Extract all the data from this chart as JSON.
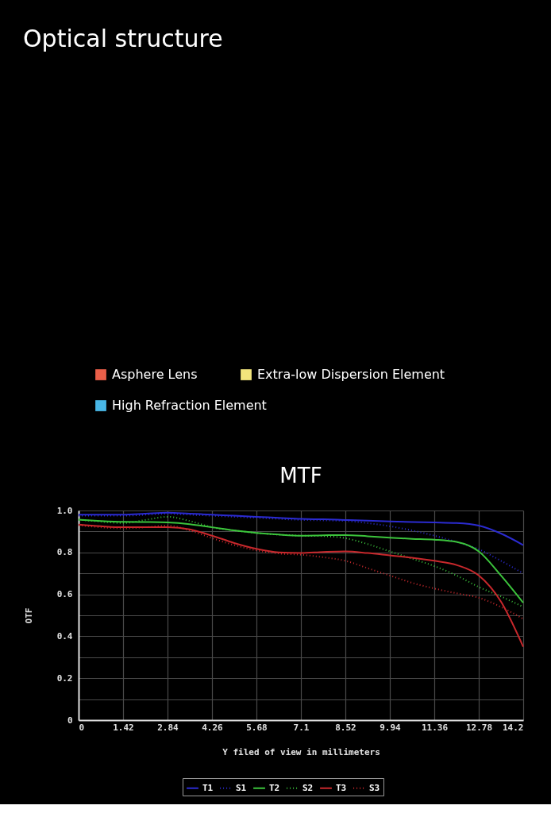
{
  "chart_data": [
    {
      "type": "other",
      "title": "Optical structure",
      "categories": [
        "Asphere Lens",
        "Extra-low Dispersion Element",
        "High Refraction Element"
      ],
      "colors": [
        "#ea5f49",
        "#f2e47c",
        "#48b6e6"
      ]
    },
    {
      "type": "line",
      "title": "MTF",
      "xlabel": "Y filed of view in millimeters",
      "ylabel": "OTF",
      "x": [
        0,
        0.71,
        1.42,
        2.13,
        2.84,
        3.55,
        4.26,
        4.97,
        5.68,
        6.39,
        7.1,
        7.81,
        8.52,
        9.23,
        9.94,
        10.65,
        11.36,
        12.07,
        12.78,
        13.49,
        14.2
      ],
      "series": [
        {
          "name": "T1",
          "color": "#2b2bd0",
          "line_style": "solid",
          "values": [
            0.98,
            0.98,
            0.98,
            0.985,
            0.99,
            0.985,
            0.98,
            0.975,
            0.97,
            0.965,
            0.96,
            0.958,
            0.955,
            0.952,
            0.948,
            0.945,
            0.943,
            0.94,
            0.928,
            0.89,
            0.835
          ]
        },
        {
          "name": "S1",
          "color": "#2b2bd0",
          "line_style": "dotted",
          "values": [
            0.975,
            0.975,
            0.975,
            0.98,
            0.985,
            0.98,
            0.975,
            0.97,
            0.965,
            0.96,
            0.955,
            0.953,
            0.95,
            0.94,
            0.925,
            0.905,
            0.88,
            0.85,
            0.815,
            0.76,
            0.7
          ]
        },
        {
          "name": "T2",
          "color": "#3cc43c",
          "line_style": "solid",
          "values": [
            0.956,
            0.95,
            0.946,
            0.945,
            0.943,
            0.935,
            0.92,
            0.905,
            0.893,
            0.885,
            0.88,
            0.882,
            0.883,
            0.877,
            0.87,
            0.865,
            0.861,
            0.85,
            0.805,
            0.69,
            0.56
          ]
        },
        {
          "name": "S2",
          "color": "#3cc43c",
          "line_style": "dotted",
          "values": [
            0.956,
            0.947,
            0.94,
            0.955,
            0.97,
            0.95,
            0.92,
            0.905,
            0.893,
            0.885,
            0.88,
            0.878,
            0.868,
            0.84,
            0.805,
            0.77,
            0.735,
            0.69,
            0.635,
            0.59,
            0.54
          ]
        },
        {
          "name": "T3",
          "color": "#c8282c",
          "line_style": "solid",
          "values": [
            0.933,
            0.925,
            0.92,
            0.92,
            0.92,
            0.91,
            0.88,
            0.845,
            0.817,
            0.8,
            0.797,
            0.802,
            0.805,
            0.797,
            0.786,
            0.775,
            0.76,
            0.74,
            0.69,
            0.565,
            0.35
          ]
        },
        {
          "name": "S3",
          "color": "#c8282c",
          "line_style": "dotted",
          "values": [
            0.93,
            0.92,
            0.915,
            0.92,
            0.928,
            0.905,
            0.868,
            0.835,
            0.81,
            0.795,
            0.789,
            0.777,
            0.76,
            0.725,
            0.69,
            0.655,
            0.628,
            0.605,
            0.584,
            0.54,
            0.483
          ]
        }
      ],
      "xlim": [
        0,
        14.2
      ],
      "ylim": [
        0,
        1
      ],
      "xticks": [
        0,
        1.42,
        2.84,
        4.26,
        5.68,
        7.1,
        8.52,
        9.94,
        11.36,
        12.78,
        14.2
      ],
      "yticks": [
        0,
        {
          "value": 0.1,
          "label": null
        },
        0.2,
        {
          "value": 0.3,
          "label": null
        },
        0.4,
        {
          "value": 0.5,
          "label": null
        },
        0.6,
        {
          "value": 0.7,
          "label": null
        },
        0.8,
        {
          "value": 0.9,
          "label": null
        },
        {
          "value": 1,
          "label": "1.0"
        }
      ],
      "grid": true,
      "legend": "bottom"
    }
  ]
}
